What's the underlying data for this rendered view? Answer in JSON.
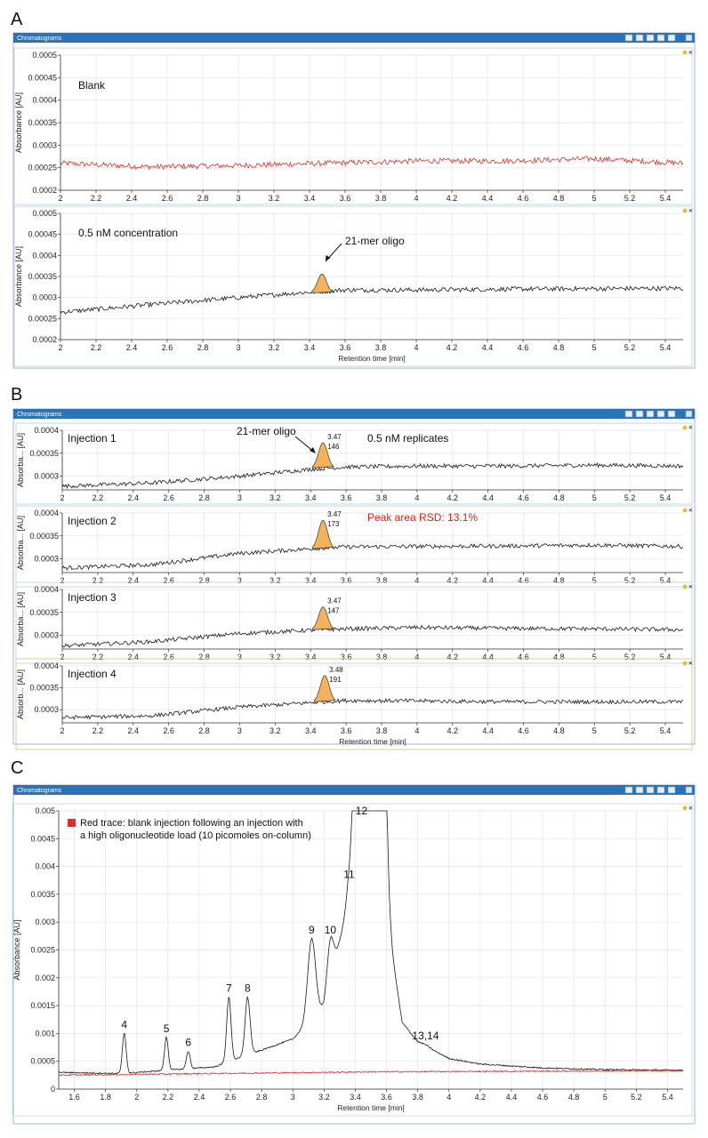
{
  "window": {
    "title": "Chromatograms",
    "accent": "#2a73b8",
    "toolbar_icons": [
      "zoom-icon",
      "copy-icon",
      "print-icon",
      "export-icon",
      "move-icon"
    ]
  },
  "colors": {
    "black_trace": "#1a1a1a",
    "red_trace": "#d9302a",
    "peak_fill": "#f5b25c",
    "grid": "#e3e3e3"
  },
  "panels": {
    "A": "A",
    "B": "B",
    "C": "C"
  },
  "chart_data": [
    {
      "id": "A-blank",
      "panel": "A",
      "type": "line",
      "xlabel": "",
      "ylabel": "Absorbance [AU]",
      "xlim": [
        2,
        5.5
      ],
      "ylim": [
        0.0002,
        0.0005
      ],
      "xticks": [
        "2",
        "2.2",
        "2.4",
        "2.6",
        "2.8",
        "3",
        "3.2",
        "3.4",
        "3.6",
        "3.8",
        "4",
        "4.2",
        "4.4",
        "4.6",
        "4.8",
        "5",
        "5.2",
        "5.4"
      ],
      "yticks": [
        "0.0002",
        "0.00025",
        "0.0003",
        "0.00035",
        "0.0004",
        "0.00045",
        "0.0005"
      ],
      "annotations": {
        "label": "Blank"
      },
      "series": [
        {
          "color": "#d9302a",
          "x": [
            2,
            2.5,
            3,
            3.5,
            4,
            4.5,
            5,
            5.5
          ],
          "y": [
            0.00026,
            0.000252,
            0.000255,
            0.00026,
            0.000265,
            0.000265,
            0.00027,
            0.00026
          ]
        }
      ]
    },
    {
      "id": "A-conc",
      "panel": "A",
      "type": "line",
      "xlabel": "Retention time [min]",
      "ylabel": "Absorbance [AU]",
      "xlim": [
        2,
        5.5
      ],
      "ylim": [
        0.0002,
        0.0005
      ],
      "xticks": [
        "2",
        "2.2",
        "2.4",
        "2.6",
        "2.8",
        "3",
        "3.2",
        "3.4",
        "3.6",
        "3.8",
        "4",
        "4.2",
        "4.4",
        "4.6",
        "4.8",
        "5",
        "5.2",
        "5.4"
      ],
      "yticks": [
        "0.0002",
        "0.00025",
        "0.0003",
        "0.00035",
        "0.0004",
        "0.00045",
        "0.0005"
      ],
      "annotations": {
        "label": "0.5 nM concentration",
        "peak_label": "21-mer oligo"
      },
      "peak": {
        "center": 3.47,
        "height": 4.5e-05,
        "baseline": 0.000311
      },
      "series": [
        {
          "color": "#1a1a1a",
          "x": [
            2,
            2.5,
            3,
            3.3,
            3.6,
            4,
            4.5,
            5,
            5.5
          ],
          "y": [
            0.000265,
            0.000283,
            0.0003,
            0.00031,
            0.000318,
            0.000318,
            0.00032,
            0.000321,
            0.000322
          ]
        }
      ]
    },
    {
      "id": "B-inj1",
      "panel": "B",
      "type": "line",
      "xlabel": "",
      "ylabel": "Absorba... [AU]",
      "xlim": [
        2,
        5.5
      ],
      "ylim": [
        0.00027,
        0.0004
      ],
      "xticks": [
        "2",
        "2.2",
        "2.4",
        "2.6",
        "2.8",
        "3",
        "3.2",
        "3.4",
        "3.6",
        "3.8",
        "4",
        "4.2",
        "4.4",
        "4.6",
        "4.8",
        "5",
        "5.2",
        "5.4"
      ],
      "yticks": [
        "0.0003",
        "0.00035",
        "0.0004"
      ],
      "annotations": {
        "label": "Injection 1",
        "peak_label": "21-mer oligo",
        "extra": "0.5 nM replicates",
        "rt": "3.47",
        "area": "146"
      },
      "peak": {
        "center": 3.47,
        "height": 5.5e-05,
        "baseline": 0.000318
      },
      "series": [
        {
          "color": "#1a1a1a",
          "x": [
            2,
            2.5,
            3,
            3.4,
            3.6,
            4,
            4.5,
            5,
            5.5
          ],
          "y": [
            0.000278,
            0.000285,
            0.0003,
            0.000315,
            0.00032,
            0.000322,
            0.000322,
            0.000324,
            0.000322
          ]
        }
      ]
    },
    {
      "id": "B-inj2",
      "panel": "B",
      "type": "line",
      "xlabel": "",
      "ylabel": "Absorba... [AU]",
      "xlim": [
        2,
        5.5
      ],
      "ylim": [
        0.00027,
        0.0004
      ],
      "xticks": [
        "2",
        "2.2",
        "2.4",
        "2.6",
        "2.8",
        "3",
        "3.2",
        "3.4",
        "3.6",
        "3.8",
        "4",
        "4.2",
        "4.4",
        "4.6",
        "4.8",
        "5",
        "5.2",
        "5.4"
      ],
      "yticks": [
        "0.0003",
        "0.00035",
        "0.0004"
      ],
      "annotations": {
        "label": "Injection 2",
        "extra": "Peak area RSD: 13.1%",
        "rt": "3.47",
        "area": "173"
      },
      "peak": {
        "center": 3.47,
        "height": 6.2e-05,
        "baseline": 0.000322
      },
      "series": [
        {
          "color": "#1a1a1a",
          "x": [
            2,
            2.5,
            3,
            3.4,
            3.6,
            4,
            4.5,
            5,
            5.5
          ],
          "y": [
            0.00028,
            0.000287,
            0.000312,
            0.000322,
            0.000326,
            0.000327,
            0.000328,
            0.00033,
            0.000327
          ]
        }
      ]
    },
    {
      "id": "B-inj3",
      "panel": "B",
      "type": "line",
      "xlabel": "",
      "ylabel": "Absorba... [AU]",
      "xlim": [
        2,
        5.5
      ],
      "ylim": [
        0.00027,
        0.0004
      ],
      "xticks": [
        "2",
        "2.2",
        "2.4",
        "2.6",
        "2.8",
        "3",
        "3.2",
        "3.4",
        "3.6",
        "3.8",
        "4",
        "4.2",
        "4.4",
        "4.6",
        "4.8",
        "5",
        "5.2",
        "5.4"
      ],
      "yticks": [
        "0.0003",
        "0.00035",
        "0.0004"
      ],
      "annotations": {
        "label": "Injection 3",
        "rt": "3.47",
        "area": "147"
      },
      "peak": {
        "center": 3.47,
        "height": 5e-05,
        "baseline": 0.000312
      },
      "series": [
        {
          "color": "#1a1a1a",
          "x": [
            2,
            2.5,
            3,
            3.4,
            3.6,
            4,
            4.5,
            5,
            5.5
          ],
          "y": [
            0.000277,
            0.000286,
            0.000304,
            0.000311,
            0.000314,
            0.000317,
            0.000315,
            0.000314,
            0.000312
          ]
        }
      ]
    },
    {
      "id": "B-inj4",
      "panel": "B",
      "type": "line",
      "xlabel": "Retention time [min]",
      "ylabel": "Absorb... [AU]",
      "xlim": [
        2,
        5.5
      ],
      "ylim": [
        0.00027,
        0.0004
      ],
      "xticks": [
        "2",
        "2.2",
        "2.4",
        "2.6",
        "2.8",
        "3",
        "3.2",
        "3.4",
        "3.6",
        "3.8",
        "4",
        "4.2",
        "4.4",
        "4.6",
        "4.8",
        "5",
        "5.2",
        "5.4"
      ],
      "yticks": [
        "0.0003",
        "0.00035",
        "0.0004"
      ],
      "annotations": {
        "label": "Injection 4",
        "rt": "3.48",
        "area": "191"
      },
      "peak": {
        "center": 3.48,
        "height": 6e-05,
        "baseline": 0.000318
      },
      "series": [
        {
          "color": "#1a1a1a",
          "x": [
            2,
            2.5,
            3,
            3.4,
            3.6,
            4,
            4.5,
            5,
            5.5
          ],
          "y": [
            0.000282,
            0.000286,
            0.000306,
            0.000316,
            0.000321,
            0.00032,
            0.000318,
            0.000318,
            0.000318
          ]
        }
      ]
    },
    {
      "id": "C",
      "panel": "C",
      "type": "line",
      "xlabel": "Retention time [min]",
      "ylabel": "Absorbance [AU]",
      "xlim": [
        1.5,
        5.5
      ],
      "ylim": [
        0,
        0.005
      ],
      "xticks": [
        "1.6",
        "1.8",
        "2",
        "2.2",
        "2.4",
        "2.6",
        "2.8",
        "3",
        "3.2",
        "3.4",
        "3.6",
        "3.8",
        "4",
        "4.2",
        "4.4",
        "4.6",
        "4.8",
        "5",
        "5.2",
        "5.4"
      ],
      "yticks": [
        "0",
        "0.0005",
        "0.001",
        "0.0015",
        "0.002",
        "0.0025",
        "0.003",
        "0.0035",
        "0.004",
        "0.0045",
        "0.005"
      ],
      "legend": {
        "text_line1": "Red trace: blank injection following an injection with",
        "text_line2": "a high oligonucleotide load (10 picomoles on-column)",
        "position": "top-left"
      },
      "peaks": [
        {
          "label": "4",
          "x": 1.92,
          "y": 0.001
        },
        {
          "label": "5",
          "x": 2.19,
          "y": 0.00093
        },
        {
          "label": "6",
          "x": 2.33,
          "y": 0.00068
        },
        {
          "label": "7",
          "x": 2.59,
          "y": 0.00165
        },
        {
          "label": "8",
          "x": 2.71,
          "y": 0.00165
        },
        {
          "label": "9",
          "x": 3.12,
          "y": 0.0027
        },
        {
          "label": "10",
          "x": 3.24,
          "y": 0.0027
        },
        {
          "label": "11",
          "x": 3.36,
          "y": 0.0037
        },
        {
          "label": "12",
          "x": 3.44,
          "y": 0.005
        },
        {
          "label": "13,14",
          "x": 3.85,
          "y": 0.0008
        }
      ],
      "series": [
        {
          "color": "#1a1a1a",
          "x": [
            1.5,
            1.9,
            2.0,
            2.5,
            2.9,
            3.0,
            3.2,
            3.5,
            3.7,
            3.8,
            4.0,
            4.2,
            4.6,
            5.0,
            5.5
          ],
          "y": [
            0.0003,
            0.00028,
            0.0003,
            0.0004,
            0.0008,
            0.0009,
            0.0015,
            0.005,
            0.0012,
            0.00085,
            0.00055,
            0.00045,
            0.00038,
            0.00035,
            0.00034
          ]
        },
        {
          "color": "#d9302a",
          "x": [
            1.5,
            2.5,
            3.5,
            4.5,
            5.5
          ],
          "y": [
            0.00025,
            0.00028,
            0.00031,
            0.00032,
            0.00033
          ]
        }
      ]
    }
  ]
}
